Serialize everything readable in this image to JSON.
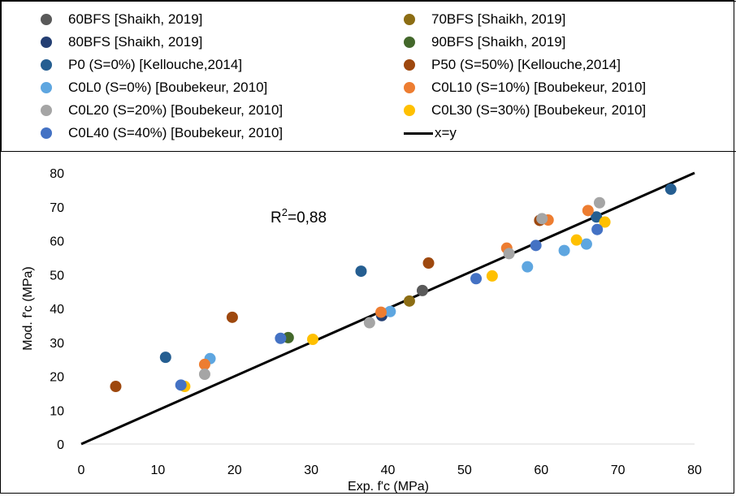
{
  "chart_data": {
    "type": "scatter",
    "xlabel": "Exp. f'c (MPa)",
    "ylabel": "Mod. f'c (MPa)",
    "xlim": [
      0,
      80
    ],
    "ylim": [
      0,
      80
    ],
    "x_ticks": [
      "0",
      "10",
      "20",
      "30",
      "40",
      "50",
      "60",
      "70",
      "80"
    ],
    "y_ticks": [
      "0",
      "10",
      "20",
      "30",
      "40",
      "50",
      "60",
      "70",
      "80"
    ],
    "grid": false,
    "legend_position": "top",
    "annotation": {
      "prefix": "R",
      "sup": "2",
      "suffix": "=0,88"
    },
    "series": [
      {
        "name": "60BFS [Shaikh, 2019]",
        "color": "#595959",
        "points": [
          [
            44.5,
            45.3
          ]
        ]
      },
      {
        "name": "70BFS [Shaikh, 2019]",
        "color": "#8c6d14",
        "points": [
          [
            42.8,
            42.2
          ]
        ]
      },
      {
        "name": "80BFS [Shaikh, 2019]",
        "color": "#243f73",
        "points": [
          [
            39.2,
            37.9
          ]
        ]
      },
      {
        "name": "90BFS [Shaikh, 2019]",
        "color": "#43682b",
        "points": [
          [
            27.0,
            31.4
          ]
        ]
      },
      {
        "name": "P0 (S=0%) [Kellouche,2014]",
        "color": "#255e91",
        "points": [
          [
            11.0,
            25.6
          ],
          [
            36.5,
            51.0
          ],
          [
            67.2,
            67.0
          ],
          [
            76.9,
            75.2
          ]
        ]
      },
      {
        "name": "P50 (S=50%) [Kellouche,2014]",
        "color": "#9e480e",
        "points": [
          [
            4.5,
            17.0
          ],
          [
            19.7,
            37.4
          ],
          [
            45.3,
            53.4
          ],
          [
            59.8,
            66.0
          ]
        ]
      },
      {
        "name": "C0L0 (S=0%) [Boubekeur, 2010]",
        "color": "#5ea6e0",
        "points": [
          [
            16.8,
            25.2
          ],
          [
            40.3,
            39.1
          ],
          [
            58.2,
            52.3
          ],
          [
            63.0,
            57.1
          ],
          [
            65.9,
            59.0
          ]
        ]
      },
      {
        "name": "C0L10 (S=10%) [Boubekeur, 2010]",
        "color": "#ed7d31",
        "points": [
          [
            16.1,
            23.5
          ],
          [
            39.1,
            38.9
          ],
          [
            55.5,
            57.8
          ],
          [
            60.9,
            66.1
          ],
          [
            66.1,
            68.9
          ]
        ]
      },
      {
        "name": "C0L20 (S=20%) [Boubekeur, 2010]",
        "color": "#a5a5a5",
        "points": [
          [
            16.1,
            20.6
          ],
          [
            37.6,
            35.8
          ],
          [
            55.8,
            56.2
          ],
          [
            60.1,
            66.5
          ],
          [
            67.6,
            71.2
          ]
        ]
      },
      {
        "name": "C0L30 (S=30%) [Boubekeur, 2010]",
        "color": "#ffc000",
        "points": [
          [
            13.5,
            17.0
          ],
          [
            30.2,
            30.9
          ],
          [
            53.6,
            49.6
          ],
          [
            64.6,
            60.2
          ],
          [
            68.3,
            65.5
          ]
        ]
      },
      {
        "name": "C0L40 (S=40%) [Boubekeur, 2010]",
        "color": "#4472c4",
        "points": [
          [
            13.0,
            17.4
          ],
          [
            26.0,
            31.2
          ],
          [
            51.5,
            48.8
          ],
          [
            59.3,
            58.6
          ],
          [
            67.3,
            63.3
          ]
        ]
      }
    ],
    "reference_line": {
      "name": "x=y",
      "color": "#000000",
      "x": [
        0,
        80
      ],
      "y": [
        0,
        80
      ]
    }
  }
}
